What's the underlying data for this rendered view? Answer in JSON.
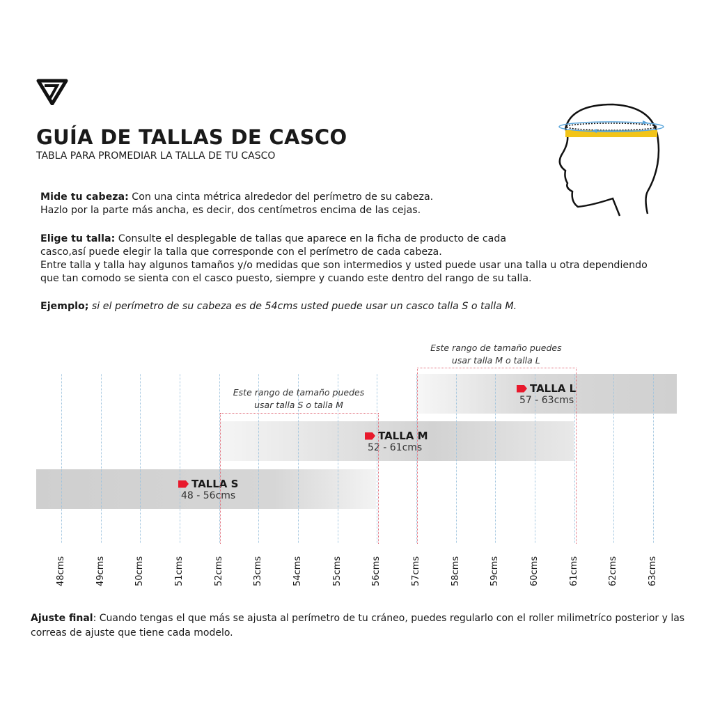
{
  "header": {
    "title": "GUÍA DE TALLAS DE CASCO",
    "subtitle": "TABLA PARA PROMEDIAR LA TALLA DE TU CASCO"
  },
  "instructions": {
    "measure_label": "Mide tu cabeza:",
    "measure_text": " Con una cinta métrica alrededor del perímetro de su cabeza.",
    "measure_text2": "Hazlo por la parte más ancha, es decir, dos centímetros encima de las cejas.",
    "choose_label": "Elige tu talla:",
    "choose_text": " Consulte el desplegable de tallas que aparece en la ficha de producto de cada",
    "choose_text2": "casco,así puede elegir la talla que corresponde con el perímetro de cada cabeza.",
    "choose_text3": "Entre talla y talla hay algunos tamaños y/o medidas que son intermedios y usted puede usar una talla u otra dependiendo",
    "choose_text4": "que tan comodo se sienta con el casco puesto, siempre y cuando este dentro del rango de su talla.",
    "example_label": "Ejemplo;",
    "example_text": " si el perímetro de su cabeza es de 54cms usted puede usar un casco talla S o talla M."
  },
  "chart": {
    "ticks": [
      "48cms",
      "49cms",
      "50cms",
      "51cms",
      "52cms",
      "53cms",
      "54cms",
      "55cms",
      "56cms",
      "57cms",
      "58cms",
      "59cms",
      "60cms",
      "61cms",
      "62cms",
      "63cms"
    ],
    "sizes": [
      {
        "name": "TALLA S",
        "range": "48 - 56cms",
        "min": 48,
        "max": 56
      },
      {
        "name": "TALLA M",
        "range": "52 - 61cms",
        "min": 52,
        "max": 61
      },
      {
        "name": "TALLA L",
        "range": "57 - 63cms",
        "min": 57,
        "max": 63
      }
    ],
    "notes": [
      {
        "line1": "Este rango de tamaño puedes",
        "line2": "usar talla S o talla M",
        "min": 52,
        "max": 56
      },
      {
        "line1": "Este rango de tamaño puedes",
        "line2": "usar talla M o talla L",
        "min": 57,
        "max": 61
      }
    ],
    "colors": {
      "flag": "#e8192c",
      "bar": "#d4d4d4",
      "gridline": "#9cc2dd",
      "overlap_box": "#e06a78"
    }
  },
  "footer": {
    "label": "Ajuste final",
    "text": ": Cuando tengas el que más se ajusta al perímetro de tu cráneo, puedes regularlo con el roller milimetríco posterior y las correas de ajuste que tiene cada modelo."
  }
}
